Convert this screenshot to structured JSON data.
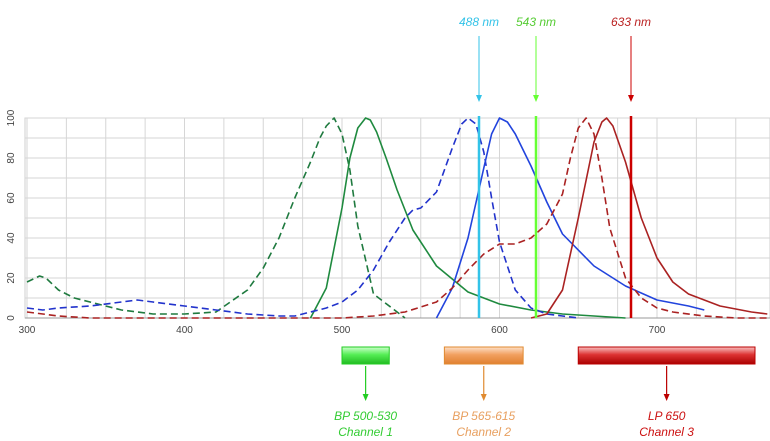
{
  "chart_data": {
    "type": "line",
    "xlim": [
      300,
      770
    ],
    "ylim": [
      0,
      100
    ],
    "grid": true,
    "x_ticks": [
      "300",
      "400",
      "500",
      "600",
      "700"
    ],
    "y_ticks": [
      "0",
      "20",
      "40",
      "60",
      "80",
      "100"
    ],
    "lasers": [
      {
        "label": "488 nm",
        "wavelength": 488,
        "color": "#33c3e8",
        "line_x": 479
      },
      {
        "label": "543 nm",
        "wavelength": 543,
        "color": "#66ff33",
        "label_color": "#55cc33",
        "line_x": 536
      },
      {
        "label": "633 nm",
        "wavelength": 633,
        "color": "#cc0000",
        "label_color": "#bb2222",
        "line_x": 631
      }
    ],
    "series": [
      {
        "style": "dashed",
        "color": "#1f7a3f",
        "x": [
          300,
          308,
          312,
          320,
          330,
          340,
          360,
          380,
          400,
          420,
          440,
          450,
          460,
          470,
          480,
          486,
          490,
          495,
          500,
          505,
          510,
          520,
          540
        ],
        "y": [
          18,
          21,
          20,
          14,
          10,
          8,
          4,
          2,
          2,
          3,
          14,
          25,
          40,
          60,
          78,
          90,
          96,
          100,
          92,
          74,
          46,
          12,
          0
        ]
      },
      {
        "style": "solid",
        "color": "#1f8a3f",
        "x": [
          480,
          490,
          500,
          505,
          510,
          515,
          518,
          522,
          528,
          535,
          545,
          560,
          580,
          600,
          620,
          640,
          660,
          680
        ],
        "y": [
          0,
          15,
          55,
          80,
          95,
          100,
          99,
          93,
          80,
          64,
          44,
          26,
          13,
          7,
          4,
          2,
          1,
          0
        ]
      },
      {
        "style": "dashed",
        "color": "#2233cc",
        "x": [
          300,
          310,
          320,
          340,
          360,
          370,
          380,
          400,
          420,
          440,
          460,
          470,
          480,
          490,
          500,
          510,
          520,
          530,
          540,
          545,
          550,
          560,
          570,
          576,
          580,
          585,
          590,
          595,
          600,
          610,
          620,
          630,
          640,
          650
        ],
        "y": [
          5,
          4,
          5,
          6,
          8,
          9,
          8,
          6,
          4,
          2,
          1,
          1,
          3,
          5,
          8,
          14,
          24,
          38,
          50,
          54,
          55,
          63,
          85,
          97,
          100,
          97,
          83,
          60,
          38,
          14,
          5,
          2,
          1,
          0
        ]
      },
      {
        "style": "solid",
        "color": "#2244dd",
        "x": [
          560,
          570,
          580,
          590,
          595,
          600,
          605,
          610,
          620,
          630,
          640,
          660,
          680,
          700,
          720,
          730
        ],
        "y": [
          0,
          15,
          40,
          75,
          92,
          100,
          98,
          92,
          76,
          58,
          42,
          26,
          16,
          9,
          6,
          4
        ]
      },
      {
        "style": "dashed",
        "color": "#aa2222",
        "x": [
          300,
          320,
          340,
          360,
          380,
          400,
          420,
          440,
          460,
          480,
          500,
          520,
          540,
          560,
          570,
          580,
          590,
          600,
          610,
          620,
          630,
          640,
          645,
          650,
          655,
          660,
          665,
          670,
          680,
          690,
          700,
          710,
          730,
          750,
          770
        ],
        "y": [
          3,
          1,
          0,
          0,
          0,
          0,
          0,
          0,
          0,
          0,
          0,
          1,
          3,
          8,
          15,
          24,
          32,
          37,
          37,
          40,
          47,
          62,
          80,
          95,
          100,
          92,
          70,
          45,
          20,
          10,
          5,
          3,
          1,
          0,
          0
        ]
      },
      {
        "style": "solid",
        "color": "#aa2222",
        "x": [
          620,
          630,
          640,
          650,
          660,
          665,
          668,
          672,
          680,
          690,
          700,
          710,
          720,
          740,
          760,
          770
        ],
        "y": [
          0,
          2,
          14,
          50,
          88,
          98,
          100,
          96,
          78,
          50,
          30,
          18,
          12,
          6,
          3,
          2
        ]
      }
    ],
    "filters": [
      {
        "label": "BP 500-530",
        "channel": "Channel 1",
        "range": [
          500,
          530
        ],
        "color": "#22cc22",
        "fill": "#66ff66",
        "text_color": "#33cc33"
      },
      {
        "label": "BP 565-615",
        "channel": "Channel 2",
        "range": [
          565,
          615
        ],
        "color": "#e08a30",
        "fill": "#f2a060",
        "text_color": "#e8a060"
      },
      {
        "label": "LP 650",
        "channel": "Channel 3",
        "range": [
          650,
          770
        ],
        "color": "#bb0000",
        "fill": "#d83030",
        "text_color": "#cc1111"
      }
    ]
  }
}
